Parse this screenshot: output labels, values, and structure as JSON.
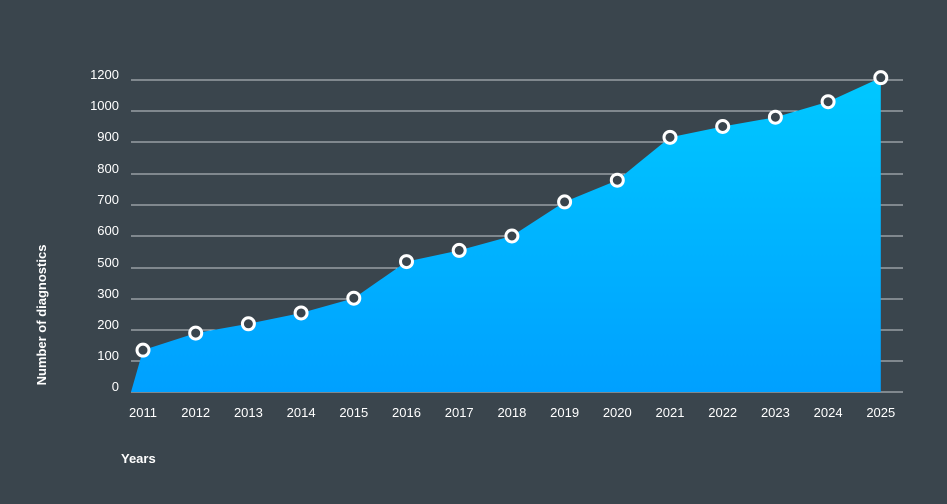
{
  "chart_data": {
    "type": "area",
    "title": "",
    "xlabel": "Years",
    "ylabel": "Number of diagnostics",
    "categories": [
      "2011",
      "2012",
      "2013",
      "2014",
      "2015",
      "2016",
      "2017",
      "2018",
      "2019",
      "2020",
      "2021",
      "2022",
      "2023",
      "2024",
      "2025"
    ],
    "series": [
      {
        "values": [
          135,
          190,
          220,
          255,
          305,
          520,
          555,
          600,
          710,
          780,
          915,
          950,
          980,
          1060,
          1215
        ]
      }
    ],
    "y_ticks": [
      "0",
      "100",
      "200",
      "300",
      "500",
      "600",
      "700",
      "800",
      "900",
      "1000",
      "1200"
    ],
    "grid": true,
    "legend": "none",
    "colors": {
      "background": "#3a454d",
      "area_top": "#00c8ff",
      "area_bottom": "#00a0ff",
      "marker_fill": "#3a454d",
      "marker_stroke": "#ffffff",
      "grid": "#c5cbd0",
      "text": "#ffffff"
    }
  }
}
